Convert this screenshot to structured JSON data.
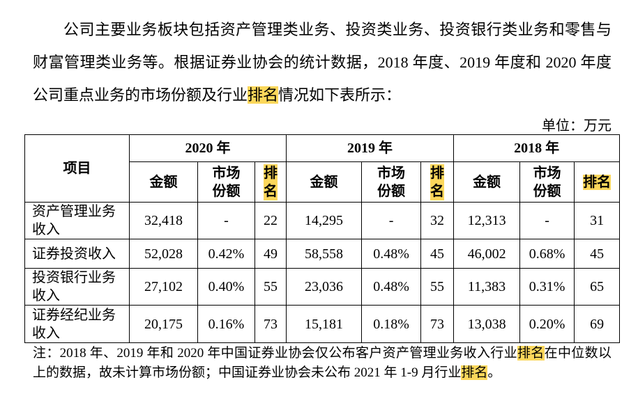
{
  "paragraph": [
    {
      "text": "公司主要业务板块包括资产管理类业务、投资类业务、投资银行类业务和零售与财富管理类业务等。根据证券业协会的统计数据，2018 年度、2019 年度和 2020 年度公司重点业务的市场份额及行业"
    },
    {
      "text": "排名",
      "mark": true
    },
    {
      "text": "情况如下表所示："
    }
  ],
  "unit": "单位：万元",
  "table": {
    "item_header": "项目",
    "years": [
      "2020 年",
      "2019 年",
      "2018 年"
    ],
    "columns": [
      "金额",
      "市场份额",
      "排名"
    ],
    "rows": [
      [
        "资产管理业务收入",
        "32,418",
        "-",
        "22",
        "14,295",
        "-",
        "32",
        "12,313",
        "-",
        "31"
      ],
      [
        "证券投资收入",
        "52,028",
        "0.42%",
        "49",
        "58,558",
        "0.48%",
        "45",
        "46,002",
        "0.68%",
        "45"
      ],
      [
        "投资银行业务收入",
        "27,102",
        "0.40%",
        "55",
        "23,036",
        "0.48%",
        "55",
        "11,383",
        "0.31%",
        "65"
      ],
      [
        "证券经纪业务收入",
        "20,175",
        "0.16%",
        "73",
        "15,181",
        "0.18%",
        "73",
        "13,038",
        "0.20%",
        "69"
      ]
    ]
  },
  "note": [
    {
      "text": "注：2018 年、2019 年和 2020 年中国证券业协会仅公布客户资产管理业务收入行业"
    },
    {
      "text": "排名",
      "mark": true
    },
    {
      "text": "在中位数以上的数据，故未计算市场份额；中国证券业协会未公布 2021 年 1-9 月行业"
    },
    {
      "text": "排名",
      "mark": true
    },
    {
      "text": "。"
    }
  ]
}
